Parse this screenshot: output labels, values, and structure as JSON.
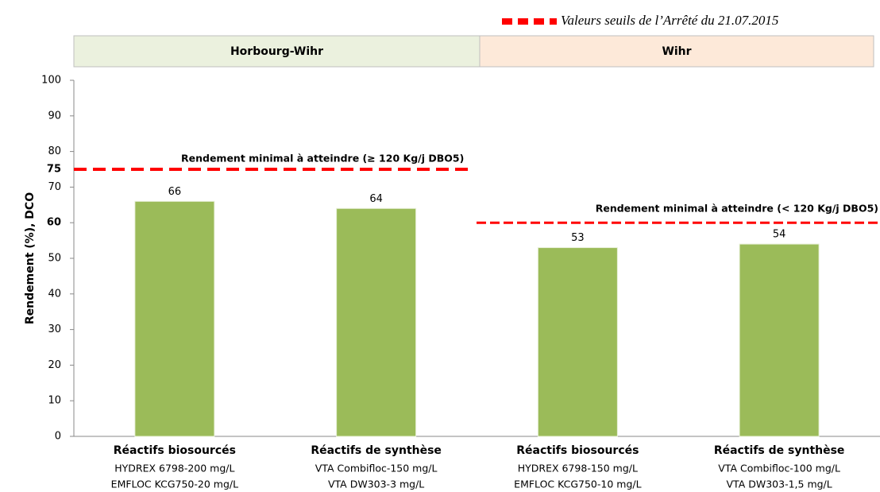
{
  "chart_data": {
    "type": "bar",
    "y_label": "Rendement (%), DCO",
    "legend": "Valeurs seuils de l’Arrêté du 21.07.2015",
    "groups": [
      {
        "name": "Horbourg-Wihr",
        "color": "#ebf1de"
      },
      {
        "name": "Wihr",
        "color": "#fde9d9"
      }
    ],
    "categories": [
      "Réactifs biosourcés",
      "Réactifs de synthèse",
      "Réactifs biosourcés",
      "Réactifs de synthèse"
    ],
    "category_details": [
      [
        "HYDREX  6798-200 mg/L",
        "EMFLOC  KCG750-20 mg/L"
      ],
      [
        "VTA  Combifloc-150 mg/L",
        "VTA  DW303-3 mg/L"
      ],
      [
        "HYDREX  6798-150 mg/L",
        "EMFLOC  KCG750-10 mg/L"
      ],
      [
        "VTA  Combifloc-100 mg/L",
        "VTA  DW303-1,5 mg/L"
      ]
    ],
    "values": [
      66,
      64,
      53,
      54
    ],
    "color": "#9bbb59",
    "value_label_color": "#8fb24f",
    "thresholds": [
      {
        "value": 75,
        "label": "Rendement minimal à atteindre (≥ 120 Kg/j DBO5)"
      },
      {
        "value": 60,
        "label": "Rendement minimal à atteindre (< 120 Kg/j DBO5)"
      }
    ],
    "threshold_color": "#ff0000",
    "ylim": [
      0,
      100
    ],
    "yticks": [
      0,
      10,
      20,
      30,
      40,
      50,
      60,
      70,
      80,
      90,
      100
    ]
  }
}
